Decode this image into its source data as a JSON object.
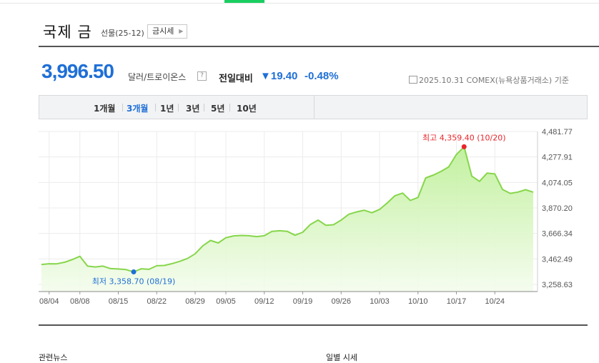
{
  "header": {
    "title": "국제 금",
    "subtitle": "선물(25-12)",
    "price_button": "금시세"
  },
  "quote": {
    "price": "3,996.50",
    "unit": "달러/트로이온스",
    "help": "?",
    "change_label": "전일대비",
    "change_value": "▼19.40",
    "change_pct": "-0.48%",
    "as_of": "2025.10.31 COMEX(뉴욕상품거래소) 기준"
  },
  "tabs": [
    {
      "label": "1개월",
      "active": false
    },
    {
      "label": "3개월",
      "active": true
    },
    {
      "label": "1년",
      "active": false
    },
    {
      "label": "3년",
      "active": false
    },
    {
      "label": "5년",
      "active": false
    },
    {
      "label": "10년",
      "active": false
    }
  ],
  "footer": {
    "left_cut": "관련뉴스",
    "right_cut": "일별 시세"
  },
  "colors": {
    "accent_blue": "#1e6fd7",
    "line_green": "#86d64b",
    "fill_green": "#c9f0a8",
    "high_red": "#e8262b",
    "low_blue": "#1e6fd7"
  },
  "chart_data": {
    "type": "area",
    "x_ticks": [
      "08/04",
      "08/08",
      "08/15",
      "08/22",
      "08/29",
      "09/05",
      "09/12",
      "09/19",
      "09/26",
      "10/03",
      "10/10",
      "10/17",
      "10/24"
    ],
    "y_ticks": [
      "4,481.77",
      "4,277.91",
      "4,074.05",
      "3,870.20",
      "3,666.34",
      "3,462.49",
      "3,258.63"
    ],
    "ylim": [
      3258.63,
      4481.77
    ],
    "grid": true,
    "high_label": "최고 4,359.40 (10/20)",
    "low_label": "최저 3,358.70 (08/19)",
    "x": [
      "08/01",
      "08/04",
      "08/05",
      "08/06",
      "08/07",
      "08/08",
      "08/11",
      "08/12",
      "08/13",
      "08/14",
      "08/15",
      "08/18",
      "08/19",
      "08/20",
      "08/21",
      "08/22",
      "08/25",
      "08/26",
      "08/27",
      "08/28",
      "08/29",
      "09/02",
      "09/03",
      "09/04",
      "09/05",
      "09/08",
      "09/09",
      "09/10",
      "09/11",
      "09/12",
      "09/15",
      "09/16",
      "09/17",
      "09/18",
      "09/19",
      "09/22",
      "09/23",
      "09/24",
      "09/25",
      "09/26",
      "09/29",
      "09/30",
      "10/01",
      "10/02",
      "10/03",
      "10/06",
      "10/07",
      "10/08",
      "10/09",
      "10/10",
      "10/13",
      "10/14",
      "10/15",
      "10/16",
      "10/17",
      "10/20",
      "10/21",
      "10/22",
      "10/23",
      "10/24",
      "10/27",
      "10/28",
      "10/29",
      "10/30",
      "10/31"
    ],
    "values": [
      3418,
      3424,
      3423,
      3436,
      3457,
      3483,
      3405,
      3398,
      3405,
      3385,
      3382,
      3377,
      3358.7,
      3384,
      3379,
      3408,
      3410,
      3425,
      3443,
      3466,
      3503,
      3568,
      3610,
      3590,
      3632,
      3647,
      3650,
      3648,
      3641,
      3648,
      3683,
      3688,
      3683,
      3652,
      3676,
      3738,
      3773,
      3732,
      3736,
      3773,
      3820,
      3838,
      3852,
      3832,
      3858,
      3910,
      3968,
      3989,
      3930,
      3954,
      4110,
      4133,
      4162,
      4199,
      4298,
      4359.4,
      4125,
      4083,
      4149,
      4142,
      4018,
      3987,
      3997,
      4016,
      3996.5
    ]
  }
}
